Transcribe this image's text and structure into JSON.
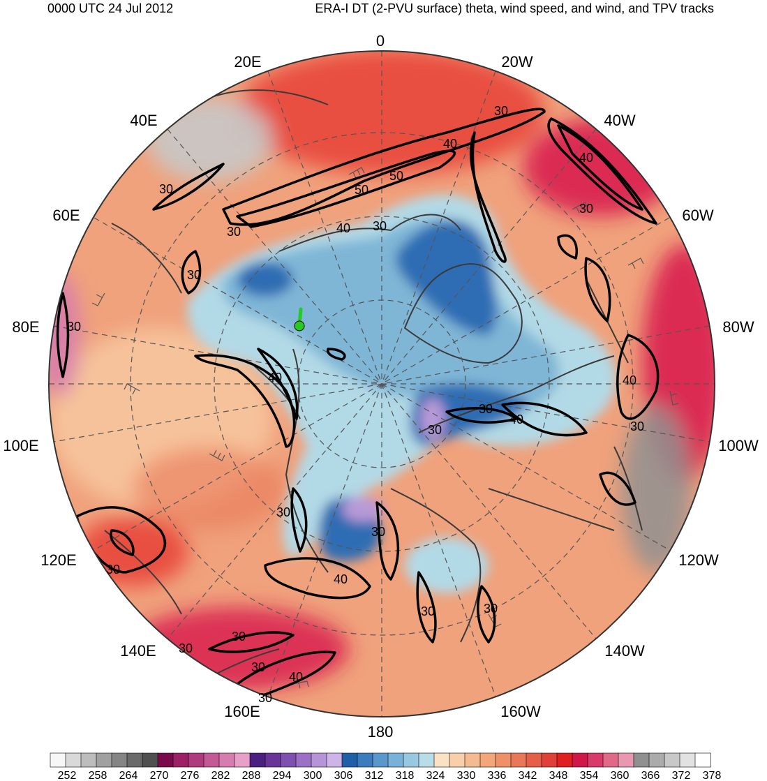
{
  "header": {
    "time": "0000 UTC 24 Jul 2012",
    "title": "ERA-I DT (2-PVU surface) theta, wind speed, and wind, and TPV tracks"
  },
  "longitude_labels": [
    "0",
    "20W",
    "40W",
    "60W",
    "80W",
    "100W",
    "120W",
    "140W",
    "160W",
    "180",
    "160E",
    "140E",
    "120E",
    "100E",
    "80E",
    "60E",
    "40E",
    "20E"
  ],
  "contour_labels": [
    "30",
    "40",
    "50"
  ],
  "colorbar": {
    "labels": [
      "252",
      "258",
      "264",
      "270",
      "276",
      "282",
      "288",
      "294",
      "300",
      "306",
      "312",
      "318",
      "324",
      "330",
      "336",
      "342",
      "348",
      "354",
      "360",
      "366",
      "372",
      "378"
    ],
    "colors": [
      "#f7f7f7",
      "#d9d9d9",
      "#bdbdbd",
      "#a0a0a0",
      "#858585",
      "#6a6a6a",
      "#505050",
      "#7a0a4a",
      "#9b2065",
      "#b03a7e",
      "#c35a95",
      "#d67cae",
      "#e8a0c8",
      "#4b2080",
      "#6a3598",
      "#8050b0",
      "#9b70c5",
      "#b595d8",
      "#cdb5e8",
      "#1f5fa8",
      "#3b7cbd",
      "#5a98cc",
      "#78b2d8",
      "#98c8e0",
      "#b8dce8",
      "#fbe2c4",
      "#f8cfa8",
      "#f5bb90",
      "#f2a67a",
      "#ee9068",
      "#e97858",
      "#e55e48",
      "#e14038",
      "#e02020",
      "#d01848",
      "#d83a6a",
      "#e06888",
      "#e898b0",
      "#909090",
      "#ababab",
      "#c8c8c8",
      "#e2e2e2",
      "#ffffff"
    ]
  },
  "tpv_track": {
    "color": "#22cc22"
  },
  "colors": {
    "warm": "#f0a27c",
    "warm_light": "#f8caa2",
    "hot": "#e8473a",
    "hottest": "#d82050",
    "cold": "#7fb6d6",
    "cold_light": "#b2d9e6",
    "coldest": "#2e6db3",
    "violet": "#b79ad8"
  }
}
